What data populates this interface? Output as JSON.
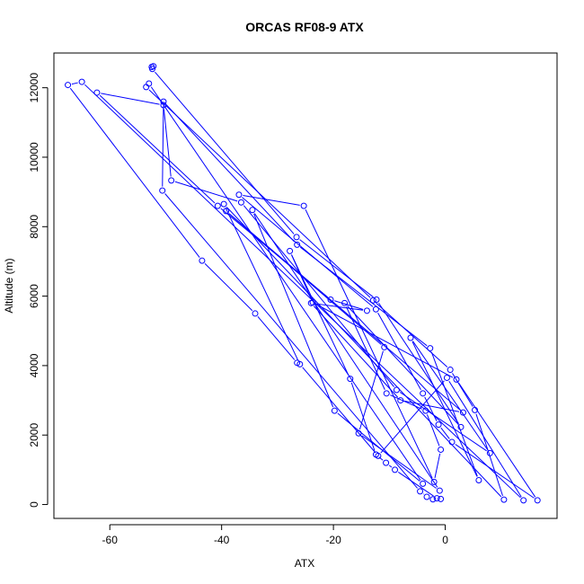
{
  "chart_data": {
    "type": "scatter",
    "title": "ORCAS RF08-9 ATX",
    "xlabel": "ATX",
    "ylabel": "Altitude (m)",
    "xlim": [
      -70,
      20
    ],
    "ylim": [
      -400,
      13000
    ],
    "xticks": [
      -60,
      -40,
      -20,
      0
    ],
    "yticks": [
      0,
      2000,
      4000,
      6000,
      8000,
      10000,
      12000
    ],
    "grid": false,
    "legend": "none",
    "colors": {
      "series": "#0000ff",
      "axis": "#000000",
      "background": "#ffffff"
    },
    "series": [
      {
        "points": [
          [
            -52.5,
            12600
          ],
          [
            -52.2,
            12620
          ],
          [
            -52.4,
            12540
          ],
          [
            -26.6,
            7700
          ],
          [
            -12.3,
            5900
          ],
          [
            2.8,
            2230
          ],
          [
            -18.0,
            5800
          ],
          [
            -10.5,
            3200
          ],
          [
            -3.5,
            2700
          ],
          [
            -0.8,
            1580
          ],
          [
            -2.0,
            650
          ],
          [
            -25.3,
            8600
          ],
          [
            -36.9,
            8920
          ],
          [
            -12.4,
            5620
          ],
          [
            -4.0,
            3200
          ],
          [
            -1.2,
            2300
          ],
          [
            1.2,
            1800
          ],
          [
            16.5,
            120
          ],
          [
            2.0,
            3600
          ],
          [
            -23.7,
            5820
          ],
          [
            -27.8,
            7300
          ],
          [
            -17.0,
            3620
          ],
          [
            -12.4,
            1440
          ],
          [
            -10.6,
            1200
          ],
          [
            -9.0,
            1000
          ],
          [
            -1.5,
            180
          ],
          [
            -0.8,
            160
          ],
          [
            -2.2,
            150
          ],
          [
            -3.3,
            220
          ],
          [
            -4.5,
            380
          ],
          [
            -50.6,
            9040
          ],
          [
            -50.4,
            11600
          ],
          [
            -26.5,
            7480
          ],
          [
            -2.7,
            4500
          ],
          [
            6.0,
            700
          ],
          [
            -6.2,
            4800
          ],
          [
            8.0,
            1480
          ],
          [
            -8.7,
            3300
          ],
          [
            -36.5,
            8700
          ],
          [
            -49.0,
            9330
          ],
          [
            -50.4,
            11500
          ],
          [
            -62.3,
            11860
          ],
          [
            -40.7,
            8600
          ],
          [
            -20.5,
            5900
          ],
          [
            -14.0,
            5580
          ],
          [
            -24.0,
            5800
          ],
          [
            -8.0,
            3000
          ],
          [
            3.2,
            2650
          ],
          [
            -39.2,
            8450
          ],
          [
            -10.9,
            4530
          ],
          [
            -15.5,
            2050
          ],
          [
            -1.0,
            400
          ],
          [
            -34.5,
            8480
          ],
          [
            -19.8,
            2700
          ],
          [
            -4.0,
            600
          ],
          [
            -53.0,
            12120
          ],
          [
            -53.5,
            12020
          ],
          [
            -12.9,
            5880
          ],
          [
            0.9,
            3880
          ],
          [
            5.3,
            2720
          ],
          [
            10.5,
            140
          ],
          [
            -39.6,
            8650
          ],
          [
            -26.0,
            4040
          ],
          [
            -12.0,
            1400
          ],
          [
            0.3,
            3650
          ],
          [
            14.0,
            120
          ],
          [
            -65.0,
            12170
          ],
          [
            -67.5,
            12080
          ],
          [
            -43.5,
            7020
          ],
          [
            -34.0,
            5500
          ],
          [
            -26.5,
            4080
          ]
        ]
      }
    ]
  }
}
